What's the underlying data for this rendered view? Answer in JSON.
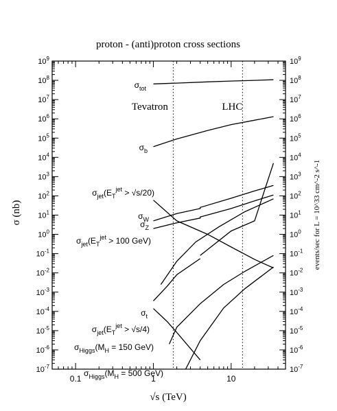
{
  "chart_data": {
    "type": "line",
    "title": "proton - (anti)proton cross sections",
    "xlabel": "√s   (TeV)",
    "ylabel": "σ  (nb)",
    "y2label": "events/sec  for  L = 10^33 cm^-2 s^-1",
    "xscale": "log",
    "yscale": "log",
    "xlim": [
      0.05,
      50
    ],
    "ylim": [
      1e-07,
      1000000000.0
    ],
    "y2_offset_decades": 0,
    "x_tick_labels": [
      {
        "value": 0.1,
        "label": "0.1"
      },
      {
        "value": 1,
        "label": "1"
      },
      {
        "value": 10,
        "label": "10"
      }
    ],
    "y_tick_exponents": [
      -7,
      -6,
      -5,
      -4,
      -3,
      -2,
      -1,
      0,
      1,
      2,
      3,
      4,
      5,
      6,
      7,
      8,
      9
    ],
    "vlines": [
      {
        "x": 1.8,
        "label": "Tevatron",
        "style": "dotted"
      },
      {
        "x": 14,
        "label": "LHC",
        "style": "dotted"
      }
    ],
    "series": [
      {
        "name": "tot",
        "x": [
          1.0,
          2,
          5,
          10,
          20,
          35
        ],
        "y": [
          65000000.0,
          72000000.0,
          83000000.0,
          92000000.0,
          100000000.0,
          107000000.0
        ]
      },
      {
        "name": "b",
        "x": [
          1.0,
          2,
          5,
          10,
          20,
          35
        ],
        "y": [
          36000.0,
          90000.0,
          250000.0,
          500000.0,
          850000.0,
          1300000.0
        ]
      },
      {
        "name": "jet20",
        "x": [
          1.0,
          2,
          5,
          10,
          20,
          35
        ],
        "y": [
          60,
          5,
          1,
          0.22,
          0.05,
          0.018
        ]
      },
      {
        "name": "W",
        "x": [
          1.0,
          2,
          4,
          4,
          10,
          20,
          35
        ],
        "y": [
          5,
          12,
          22,
          25,
          75,
          180,
          350
        ]
      },
      {
        "name": "Z",
        "x": [
          1.0,
          2,
          4,
          4,
          10,
          20,
          35
        ],
        "y": [
          2,
          4,
          7,
          8,
          22,
          55,
          110
        ]
      },
      {
        "name": "jet100",
        "x": [
          1.25,
          2,
          3.5,
          7,
          15,
          35
        ],
        "y": [
          0.0025,
          0.04,
          0.4,
          2.5,
          15,
          70
        ]
      },
      {
        "name": "t",
        "x": [
          1.0,
          1.5,
          2,
          4
        ],
        "y": [
          0.00035,
          0.002,
          0.008,
          0.055
        ]
      },
      {
        "name": "t_lhc",
        "x": [
          4,
          10,
          20,
          35
        ],
        "y": [
          0.08,
          1.5,
          5,
          5000
        ]
      },
      {
        "name": "jet_s4",
        "x": [
          1.0,
          1.5,
          2,
          4
        ],
        "y": [
          0.00014,
          3e-05,
          8e-06,
          3e-07
        ]
      },
      {
        "name": "higgs150",
        "x": [
          1.6,
          2,
          4,
          8,
          15,
          35
        ],
        "y": [
          2e-06,
          1.5e-05,
          0.00025,
          0.0025,
          0.012,
          0.08
        ]
      },
      {
        "name": "higgs500",
        "x": [
          2.6,
          4,
          8,
          15,
          35
        ],
        "y": [
          1e-07,
          3e-06,
          0.00015,
          0.0015,
          0.02
        ]
      }
    ],
    "series_labels": [
      {
        "sym": "σ",
        "sub": "tot",
        "rest": "",
        "sup": "",
        "tail": "",
        "for": "tot"
      },
      {
        "sym": "σ",
        "sub": "b",
        "rest": "",
        "sup": "",
        "tail": "",
        "for": "b"
      },
      {
        "sym": "σ",
        "sub": "jet",
        "rest": "(E",
        "rsub": "T",
        "sup": "jet",
        "tail": " > √s/20)",
        "for": "jet20"
      },
      {
        "sym": "σ",
        "sub": "W",
        "rest": "",
        "sup": "",
        "tail": "",
        "for": "W"
      },
      {
        "sym": "σ",
        "sub": "Z",
        "rest": "",
        "sup": "",
        "tail": "",
        "for": "Z"
      },
      {
        "sym": "σ",
        "sub": "jet",
        "rest": "(E",
        "rsub": "T",
        "sup": "jet",
        "tail": " > 100 GeV)",
        "for": "jet100"
      },
      {
        "sym": "σ",
        "sub": "t",
        "rest": "",
        "sup": "",
        "tail": "",
        "for": "t"
      },
      {
        "sym": "σ",
        "sub": "jet",
        "rest": "(E",
        "rsub": "T",
        "sup": "jet",
        "tail": " > √s/4)",
        "for": "jet_s4"
      },
      {
        "sym": "σ",
        "sub": "Higgs",
        "rest": "(M",
        "rsub": "H",
        "sup": "",
        "tail": " = 150 GeV)",
        "for": "higgs150"
      },
      {
        "sym": "σ",
        "sub": "Higgs",
        "rest": "(M",
        "rsub": "H",
        "sup": "",
        "tail": " = 500 GeV)",
        "for": "higgs500"
      }
    ]
  }
}
